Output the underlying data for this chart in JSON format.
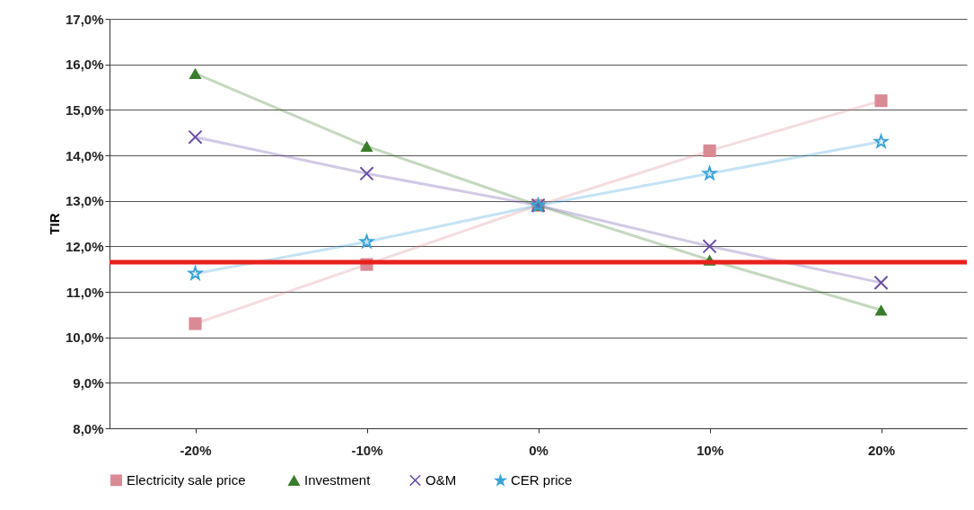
{
  "chart_data": {
    "type": "line",
    "ylabel": "TIR",
    "categories": [
      "-20%",
      "-10%",
      "0%",
      "10%",
      "20%"
    ],
    "series": [
      {
        "name": "Electricity  sale price",
        "color": "#d98a95",
        "marker": "square",
        "values": [
          10.3,
          11.6,
          12.9,
          14.1,
          15.2
        ]
      },
      {
        "name": "Investment",
        "color": "#3a7d2c",
        "marker": "triangle",
        "values": [
          15.8,
          14.2,
          12.9,
          11.7,
          10.6
        ]
      },
      {
        "name": "O&M",
        "color": "#6a4fa6",
        "marker": "cross",
        "values": [
          14.4,
          13.6,
          12.9,
          12.0,
          11.2
        ]
      },
      {
        "name": "CER price",
        "color": "#3aa3d8",
        "marker": "star",
        "values": [
          11.4,
          12.1,
          12.9,
          13.6,
          14.3
        ]
      }
    ],
    "ylim": [
      8,
      17
    ],
    "yticks": [
      {
        "value": 8,
        "label": "8,0%"
      },
      {
        "value": 9,
        "label": "9,0%"
      },
      {
        "value": 10,
        "label": "10,0%"
      },
      {
        "value": 11,
        "label": "11,0%"
      },
      {
        "value": 12,
        "label": "12,0%"
      },
      {
        "value": 13,
        "label": "13,0%"
      },
      {
        "value": 14,
        "label": "14,0%"
      },
      {
        "value": 15,
        "label": "15,0%"
      },
      {
        "value": 16,
        "label": "16,0%"
      },
      {
        "value": 17,
        "label": "17,0%"
      }
    ],
    "ref_lines": [
      {
        "axis": "y",
        "value": 11.65,
        "color": "#e8201c"
      }
    ],
    "grid": "y",
    "legend": "bottom"
  }
}
